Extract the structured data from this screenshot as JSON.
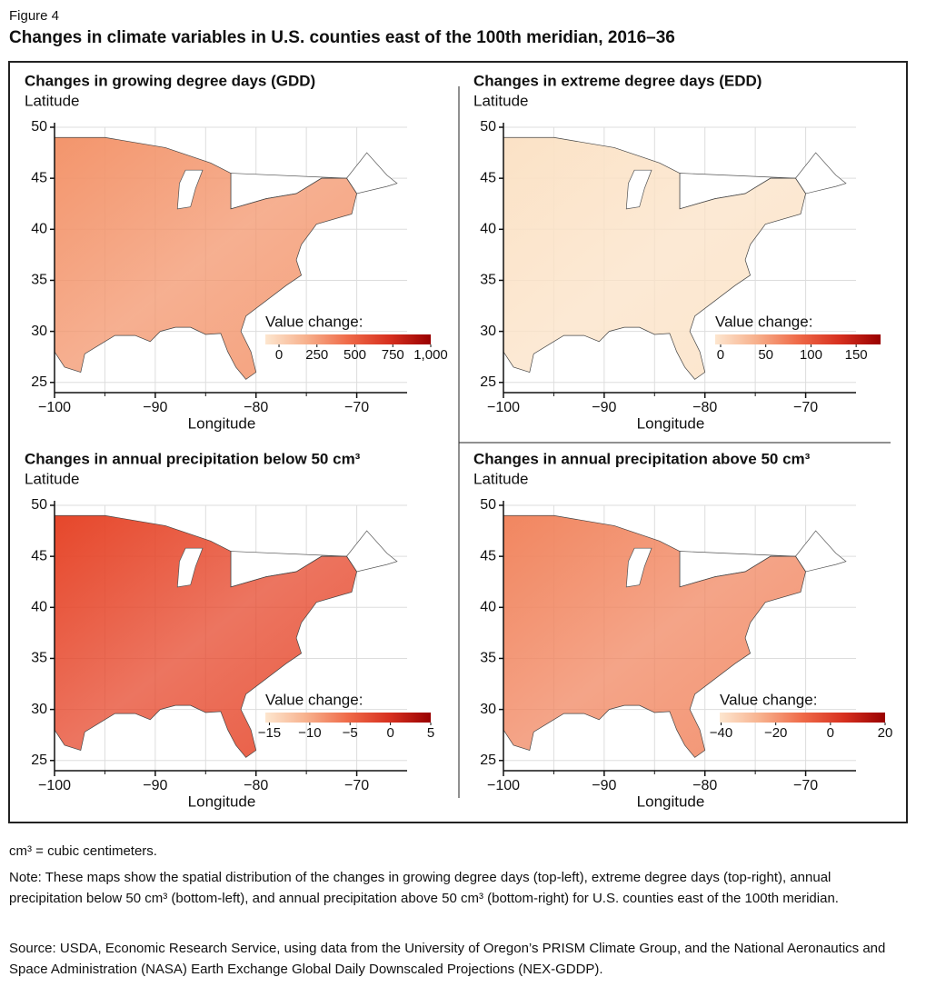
{
  "figure_label": "Figure 4",
  "title": "Changes in climate variables in U.S. counties east of the 100th meridian, 2016–36",
  "chart_data": [
    {
      "type": "map",
      "title": "Changes in growing degree days (GDD)",
      "ylabel": "Latitude",
      "xlabel": "Longitude",
      "xlim": [
        -100,
        -65
      ],
      "ylim": [
        24,
        50
      ],
      "xticks": [
        {
          "value": -100,
          "label": "−100"
        },
        {
          "value": -90,
          "label": "−90"
        },
        {
          "value": -80,
          "label": "−80"
        },
        {
          "value": -70,
          "label": "−70"
        }
      ],
      "xminorticks": [
        -95,
        -85,
        -75
      ],
      "yticks": [
        25,
        30,
        35,
        40,
        45,
        50
      ],
      "grid": true,
      "map_color": "#f3956c",
      "colorbar": {
        "title": "Value change:",
        "lim": [
          -90,
          1000
        ],
        "ticks": [
          0,
          250,
          500,
          750,
          {
            "value": 1000,
            "label": "1,000"
          }
        ],
        "colors": [
          "#fde6cf",
          "#f7b08c",
          "#ef6a48",
          "#d7301f",
          "#990000"
        ]
      }
    },
    {
      "type": "map",
      "title": "Changes in extreme degree days (EDD)",
      "ylabel": "Latitude",
      "xlabel": "Longitude",
      "xlim": [
        -100,
        -65
      ],
      "ylim": [
        24,
        50
      ],
      "xticks": [
        {
          "value": -100,
          "label": "−100"
        },
        {
          "value": -90,
          "label": "−90"
        },
        {
          "value": -80,
          "label": "−80"
        },
        {
          "value": -70,
          "label": "−70"
        }
      ],
      "xminorticks": [
        -95,
        -85,
        -75
      ],
      "yticks": [
        25,
        30,
        35,
        40,
        45,
        50
      ],
      "grid": true,
      "map_color": "#fbe2c6",
      "colorbar": {
        "title": "Value change:",
        "lim": [
          -6,
          177
        ],
        "ticks": [
          0,
          50,
          100,
          150
        ],
        "colors": [
          "#fde6cf",
          "#f7b08c",
          "#ef6a48",
          "#d7301f",
          "#990000"
        ]
      }
    },
    {
      "type": "map",
      "title": "Changes in annual precipitation below 50 cm³",
      "ylabel": "Latitude",
      "xlabel": "Longitude",
      "xlim": [
        -100,
        -65
      ],
      "ylim": [
        24,
        50
      ],
      "xticks": [
        {
          "value": -100,
          "label": "−100"
        },
        {
          "value": -90,
          "label": "−90"
        },
        {
          "value": -80,
          "label": "−80"
        },
        {
          "value": -70,
          "label": "−70"
        }
      ],
      "xminorticks": [
        -95,
        -85,
        -75
      ],
      "yticks": [
        25,
        30,
        35,
        40,
        45,
        50
      ],
      "grid": true,
      "map_color": "#e6472b",
      "colorbar": {
        "title": "Value change:",
        "lim": [
          -15.5,
          5
        ],
        "ticks": [
          {
            "value": -15,
            "label": "−15"
          },
          {
            "value": -10,
            "label": "−10"
          },
          {
            "value": -5,
            "label": "−5"
          },
          0,
          5
        ],
        "colors": [
          "#fde6cf",
          "#f7b08c",
          "#ef6a48",
          "#d7301f",
          "#990000"
        ]
      }
    },
    {
      "type": "map",
      "title": "Changes in annual precipitation above 50 cm³",
      "ylabel": "Latitude",
      "xlabel": "Longitude",
      "xlim": [
        -100,
        -65
      ],
      "ylim": [
        24,
        50
      ],
      "xticks": [
        {
          "value": -100,
          "label": "−100"
        },
        {
          "value": -90,
          "label": "−90"
        },
        {
          "value": -80,
          "label": "−80"
        },
        {
          "value": -70,
          "label": "−70"
        }
      ],
      "xminorticks": [
        -95,
        -85,
        -75
      ],
      "yticks": [
        25,
        30,
        35,
        40,
        45,
        50
      ],
      "grid": true,
      "map_color": "#f18660",
      "colorbar": {
        "title": "Value change:",
        "lim": [
          -40.5,
          20
        ],
        "ticks": [
          {
            "value": -40,
            "label": "−40"
          },
          {
            "value": -20,
            "label": "−20"
          },
          0,
          20
        ],
        "colors": [
          "#fde6cf",
          "#f7b08c",
          "#ef6a48",
          "#d7301f",
          "#990000"
        ]
      }
    }
  ],
  "footnotes": {
    "units": "cm³ = cubic centimeters.",
    "note": "Note: These maps show the spatial distribution of the changes in growing degree days (top-left), extreme degree days (top-right), annual precipitation below 50 cm³ (bottom-left), and annual precipitation above 50 cm³ (bottom-right) for U.S. counties east of the 100th meridian.",
    "source": "Source: USDA, Economic Research Service, using data from the University of Oregon’s PRISM Climate Group, and the National Aeronautics and Space Administration (NASA) Earth Exchange Global Daily Downscaled Projections (NEX-GDDP)."
  }
}
